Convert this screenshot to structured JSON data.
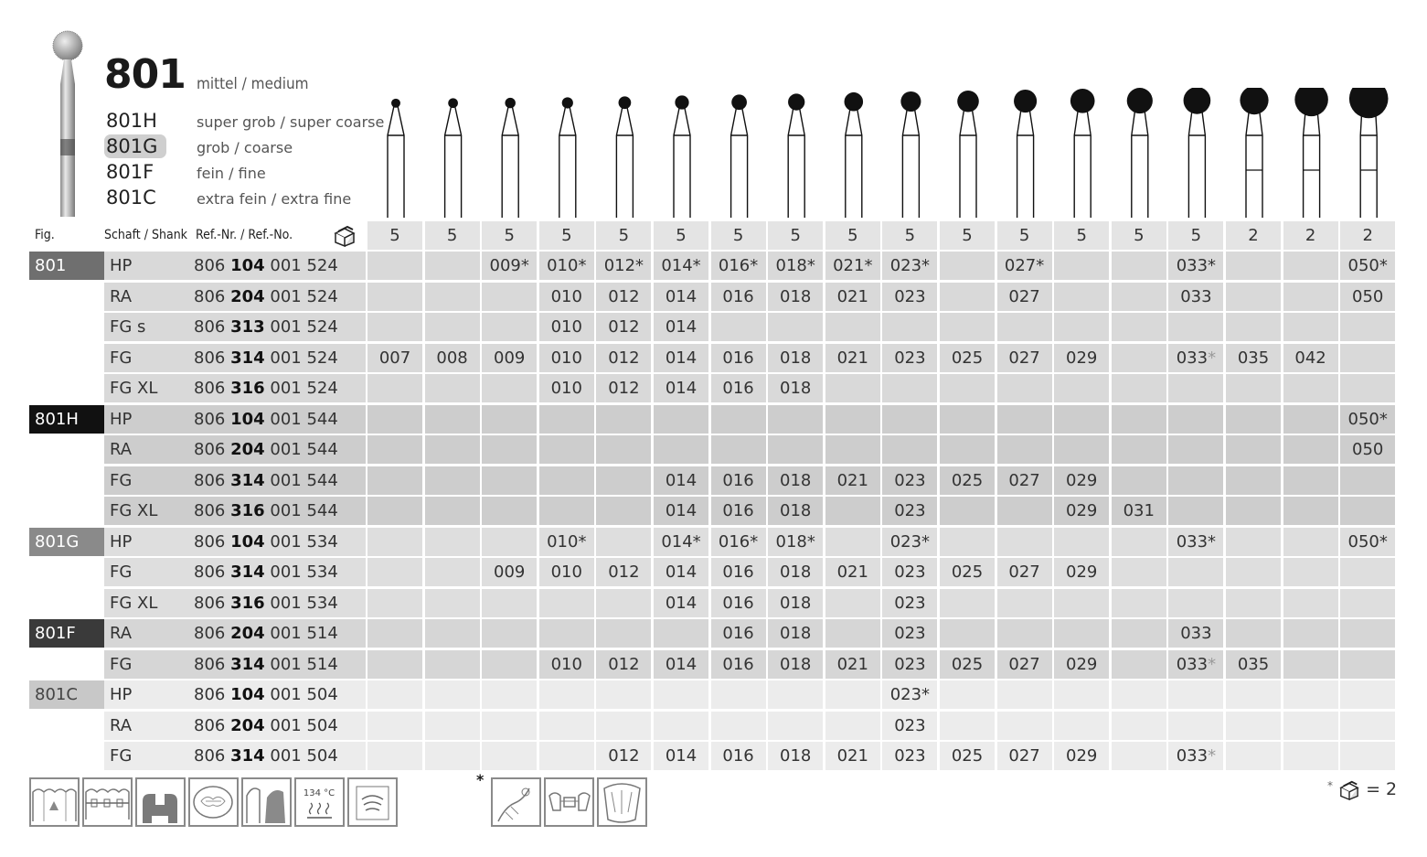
{
  "header": {
    "code": "801",
    "main_grit": "mittel / medium",
    "grits": [
      {
        "code": "801H",
        "desc": "super grob / super coarse",
        "selected": false
      },
      {
        "code": "801G",
        "desc": "grob / coarse",
        "selected": true
      },
      {
        "code": "801F",
        "desc": "fein / fine",
        "selected": false
      },
      {
        "code": "801C",
        "desc": "extra fein / extra fine",
        "selected": false
      }
    ]
  },
  "table": {
    "col_fig": "Fig.",
    "col_shank": "Schaft / Shank",
    "col_ref": "Ref.-Nr. / Ref.-No.",
    "pack_icon": "package-icon",
    "pack_counts": [
      "5",
      "5",
      "5",
      "5",
      "5",
      "5",
      "5",
      "5",
      "5",
      "5",
      "5",
      "5",
      "5",
      "5",
      "5",
      "2",
      "2",
      "2"
    ],
    "rows": [
      {
        "fig": "801",
        "fig_color": "#6f6f6f",
        "shank": "HP",
        "ref_pre": "806",
        "ref_bold": "104",
        "ref_post": "001 524",
        "shade": "#d9d9d9",
        "values": [
          "",
          "",
          "009*",
          "010*",
          "012*",
          "014*",
          "016*",
          "018*",
          "021*",
          "023*",
          "",
          "027*",
          "",
          "",
          "033*",
          "",
          "",
          "050*"
        ]
      },
      {
        "fig": "",
        "fig_color": "",
        "shank": "RA",
        "ref_pre": "806",
        "ref_bold": "204",
        "ref_post": "001 524",
        "shade": "#d9d9d9",
        "values": [
          "",
          "",
          "",
          "010",
          "012",
          "014",
          "016",
          "018",
          "021",
          "023",
          "",
          "027",
          "",
          "",
          "033",
          "",
          "",
          "050"
        ]
      },
      {
        "fig": "",
        "fig_color": "",
        "shank": "FG s",
        "ref_pre": "806",
        "ref_bold": "313",
        "ref_post": "001 524",
        "shade": "#d9d9d9",
        "values": [
          "",
          "",
          "",
          "010",
          "012",
          "014",
          "",
          "",
          "",
          "",
          "",
          "",
          "",
          "",
          "",
          "",
          "",
          ""
        ]
      },
      {
        "fig": "",
        "fig_color": "",
        "shank": "FG",
        "ref_pre": "806",
        "ref_bold": "314",
        "ref_post": "001 524",
        "shade": "#d9d9d9",
        "values": [
          "007",
          "008",
          "009",
          "010",
          "012",
          "014",
          "016",
          "018",
          "021",
          "023",
          "025",
          "027",
          "029",
          "",
          "033*",
          "035",
          "042",
          ""
        ]
      },
      {
        "fig": "",
        "fig_color": "",
        "shank": "FG XL",
        "ref_pre": "806",
        "ref_bold": "316",
        "ref_post": "001 524",
        "shade": "#d9d9d9",
        "values": [
          "",
          "",
          "",
          "010",
          "012",
          "014",
          "016",
          "018",
          "",
          "",
          "",
          "",
          "",
          "",
          "",
          "",
          "",
          ""
        ]
      },
      {
        "fig": "801H",
        "fig_color": "#111111",
        "shank": "HP",
        "ref_pre": "806",
        "ref_bold": "104",
        "ref_post": "001 544",
        "shade": "#cdcdcd",
        "values": [
          "",
          "",
          "",
          "",
          "",
          "",
          "",
          "",
          "",
          "",
          "",
          "",
          "",
          "",
          "",
          "",
          "",
          "050*"
        ]
      },
      {
        "fig": "",
        "fig_color": "",
        "shank": "RA",
        "ref_pre": "806",
        "ref_bold": "204",
        "ref_post": "001 544",
        "shade": "#cdcdcd",
        "values": [
          "",
          "",
          "",
          "",
          "",
          "",
          "",
          "",
          "",
          "",
          "",
          "",
          "",
          "",
          "",
          "",
          "",
          "050"
        ]
      },
      {
        "fig": "",
        "fig_color": "",
        "shank": "FG",
        "ref_pre": "806",
        "ref_bold": "314",
        "ref_post": "001 544",
        "shade": "#cdcdcd",
        "values": [
          "",
          "",
          "",
          "",
          "",
          "014",
          "016",
          "018",
          "021",
          "023",
          "025",
          "027",
          "029",
          "",
          "",
          "",
          "",
          ""
        ]
      },
      {
        "fig": "",
        "fig_color": "",
        "shank": "FG XL",
        "ref_pre": "806",
        "ref_bold": "316",
        "ref_post": "001 544",
        "shade": "#cdcdcd",
        "values": [
          "",
          "",
          "",
          "",
          "",
          "014",
          "016",
          "018",
          "",
          "023",
          "",
          "",
          "029",
          "031",
          "",
          "",
          "",
          ""
        ]
      },
      {
        "fig": "801G",
        "fig_color": "#8a8a8a",
        "shank": "HP",
        "ref_pre": "806",
        "ref_bold": "104",
        "ref_post": "001 534",
        "shade": "#dedede",
        "values": [
          "",
          "",
          "",
          "010*",
          "",
          "014*",
          "016*",
          "018*",
          "",
          "023*",
          "",
          "",
          "",
          "",
          "033*",
          "",
          "",
          "050*"
        ]
      },
      {
        "fig": "",
        "fig_color": "",
        "shank": "FG",
        "ref_pre": "806",
        "ref_bold": "314",
        "ref_post": "001 534",
        "shade": "#dedede",
        "values": [
          "",
          "",
          "009",
          "010",
          "012",
          "014",
          "016",
          "018",
          "021",
          "023",
          "025",
          "027",
          "029",
          "",
          "",
          "",
          "",
          ""
        ]
      },
      {
        "fig": "",
        "fig_color": "",
        "shank": "FG XL",
        "ref_pre": "806",
        "ref_bold": "316",
        "ref_post": "001 534",
        "shade": "#dedede",
        "values": [
          "",
          "",
          "",
          "",
          "",
          "014",
          "016",
          "018",
          "",
          "023",
          "",
          "",
          "",
          "",
          "",
          "",
          "",
          ""
        ]
      },
      {
        "fig": "801F",
        "fig_color": "#3a3a3a",
        "shank": "RA",
        "ref_pre": "806",
        "ref_bold": "204",
        "ref_post": "001 514",
        "shade": "#d6d6d6",
        "values": [
          "",
          "",
          "",
          "",
          "",
          "",
          "016",
          "018",
          "",
          "023",
          "",
          "",
          "",
          "",
          "033",
          "",
          "",
          ""
        ]
      },
      {
        "fig": "",
        "fig_color": "",
        "shank": "FG",
        "ref_pre": "806",
        "ref_bold": "314",
        "ref_post": "001 514",
        "shade": "#d6d6d6",
        "values": [
          "",
          "",
          "",
          "010",
          "012",
          "014",
          "016",
          "018",
          "021",
          "023",
          "025",
          "027",
          "029",
          "",
          "033*",
          "035",
          "",
          ""
        ]
      },
      {
        "fig": "801C",
        "fig_color": "#c8c8c8",
        "shank": "HP",
        "ref_pre": "806",
        "ref_bold": "104",
        "ref_post": "001 504",
        "shade": "#ececec",
        "values": [
          "",
          "",
          "",
          "",
          "",
          "",
          "",
          "",
          "",
          "023*",
          "",
          "",
          "",
          "",
          "",
          "",
          "",
          ""
        ]
      },
      {
        "fig": "",
        "fig_color": "",
        "shank": "RA",
        "ref_pre": "806",
        "ref_bold": "204",
        "ref_post": "001 504",
        "shade": "#ececec",
        "values": [
          "",
          "",
          "",
          "",
          "",
          "",
          "",
          "",
          "",
          "023",
          "",
          "",
          "",
          "",
          "",
          "",
          "",
          ""
        ]
      },
      {
        "fig": "",
        "fig_color": "",
        "shank": "FG",
        "ref_pre": "806",
        "ref_bold": "314",
        "ref_post": "001 504",
        "shade": "#ececec",
        "values": [
          "",
          "",
          "",
          "",
          "012",
          "014",
          "016",
          "018",
          "021",
          "023",
          "025",
          "027",
          "029",
          "",
          "033*",
          "",
          "",
          ""
        ]
      }
    ]
  },
  "instrument_sizes": [
    7,
    8,
    9,
    10,
    12,
    14,
    16,
    18,
    21,
    23,
    25,
    27,
    29,
    31,
    33,
    35,
    42,
    50
  ],
  "footer": {
    "icons": [
      "cavity-preparation-icon",
      "orthodontic-bracket-icon",
      "tooth-section-icon",
      "occlusal-preparation-icon",
      "crown-preparation-icon",
      "sterilization-134c-icon",
      "sonic-icon"
    ],
    "sterilize_label": "134 °C",
    "star": "*",
    "special_icons": [
      "gingiva-instrument-icon",
      "implant-bridge-icon",
      "denture-icon"
    ],
    "pack_note_star": "*",
    "pack_note": "= 2"
  }
}
